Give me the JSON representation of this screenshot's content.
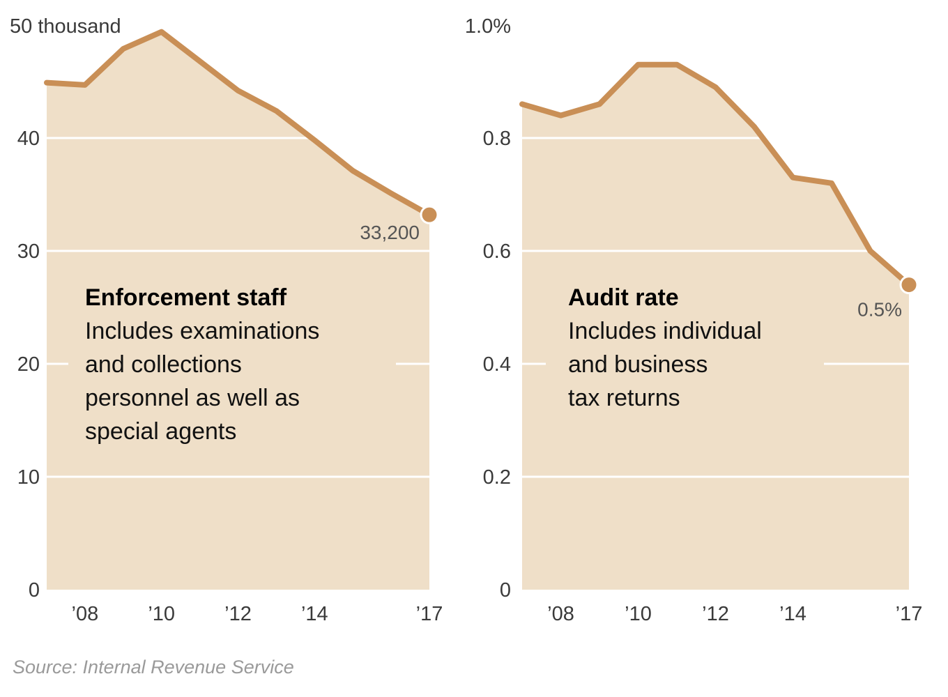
{
  "source": "Source: Internal Revenue Service",
  "colors": {
    "fill": "#efdfc8",
    "line": "#c98f56",
    "grid": "#ffffff"
  },
  "chart_data": [
    {
      "type": "area",
      "x": [
        2007,
        2008,
        2009,
        2010,
        2011,
        2012,
        2013,
        2014,
        2015,
        2016,
        2017
      ],
      "values": [
        44.9,
        44.7,
        47.9,
        49.4,
        46.8,
        44.2,
        42.4,
        39.8,
        37.1,
        35.1,
        33.2
      ],
      "ylim": [
        0,
        50
      ],
      "yticks": [
        0,
        10,
        20,
        30,
        40,
        50
      ],
      "ytick_labels": [
        "0",
        "10",
        "20",
        "30",
        "40",
        "50 thousand"
      ],
      "xticks": [
        2008,
        2010,
        2012,
        2014,
        2017
      ],
      "xtick_labels": [
        "’08",
        "’10",
        "’12",
        "’14",
        "’17"
      ],
      "end_label": "33,200",
      "annotation_title": "Enforcement staff",
      "annotation_lines": [
        "Includes examinations",
        "and collections",
        "personnel as well as",
        "special agents"
      ]
    },
    {
      "type": "area",
      "x": [
        2007,
        2008,
        2009,
        2010,
        2011,
        2012,
        2013,
        2014,
        2015,
        2016,
        2017
      ],
      "values": [
        0.86,
        0.84,
        0.86,
        0.93,
        0.93,
        0.89,
        0.82,
        0.73,
        0.72,
        0.6,
        0.54
      ],
      "ylim": [
        0,
        1.0
      ],
      "yticks": [
        0,
        0.2,
        0.4,
        0.6,
        0.8,
        1.0
      ],
      "ytick_labels": [
        "0",
        "0.2",
        "0.4",
        "0.6",
        "0.8",
        "1.0%"
      ],
      "xticks": [
        2008,
        2010,
        2012,
        2014,
        2017
      ],
      "xtick_labels": [
        "’08",
        "’10",
        "’12",
        "’14",
        "’17"
      ],
      "end_label": "0.5%",
      "annotation_title": "Audit rate",
      "annotation_lines": [
        "Includes individual",
        "and business",
        "tax returns"
      ]
    }
  ]
}
